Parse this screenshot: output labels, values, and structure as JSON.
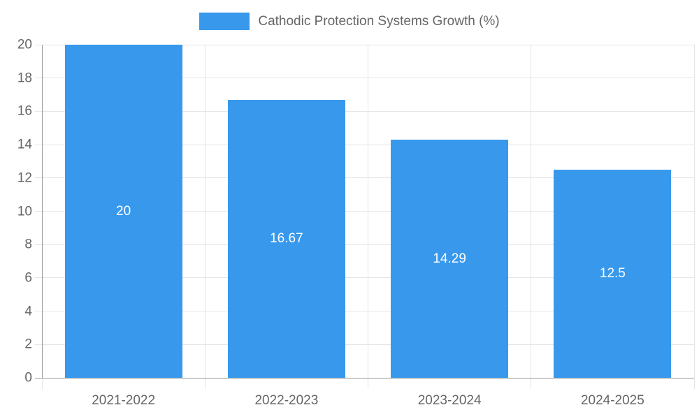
{
  "legend": {
    "label": "Cathodic Protection Systems Growth (%)"
  },
  "colors": {
    "bar": "#3899EC",
    "axis_line": "#999999",
    "grid_line": "#e5e5e5",
    "tick_text": "#666666",
    "legend_text": "#666666",
    "bar_label_text": "#ffffff",
    "background": "#ffffff"
  },
  "chart_data": {
    "type": "bar",
    "title": "Cathodic Protection Systems Growth (%)",
    "categories": [
      "2021-2022",
      "2022-2023",
      "2023-2024",
      "2024-2025"
    ],
    "values": [
      20,
      16.67,
      14.29,
      12.5
    ],
    "value_labels": [
      "20",
      "16.67",
      "14.29",
      "12.5"
    ],
    "series_name": "Cathodic Protection Systems Growth (%)",
    "xlabel": "",
    "ylabel": "",
    "ylim": [
      0,
      20
    ],
    "ytick_step": 2,
    "ytick_labels": [
      "0",
      "2",
      "4",
      "6",
      "8",
      "10",
      "12",
      "14",
      "16",
      "18",
      "20"
    ],
    "grid": true,
    "legend_position": "top"
  }
}
